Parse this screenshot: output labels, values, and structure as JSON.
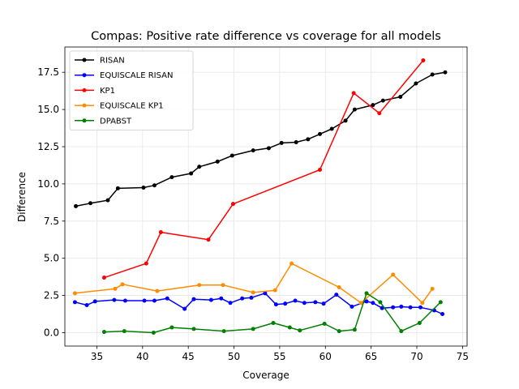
{
  "chart_data": {
    "type": "line",
    "title": "Compas: Positive rate difference vs coverage for all models",
    "xlabel": "Coverage",
    "ylabel": "Difference",
    "xlim": [
      31.5,
      75.5
    ],
    "ylim": [
      -0.9,
      19.2
    ],
    "xticks": [
      35,
      40,
      45,
      50,
      55,
      60,
      65,
      70,
      75
    ],
    "xtick_labels": [
      "35",
      "40",
      "45",
      "50",
      "55",
      "60",
      "65",
      "70",
      "75"
    ],
    "yticks": [
      0.0,
      2.5,
      5.0,
      7.5,
      10.0,
      12.5,
      15.0,
      17.5
    ],
    "ytick_labels": [
      "0.0",
      "2.5",
      "5.0",
      "7.5",
      "10.0",
      "12.5",
      "15.0",
      "17.5"
    ],
    "grid": true,
    "legend_position": "top-left",
    "series": [
      {
        "name": "RISAN",
        "color": "#000000",
        "x": [
          32.7,
          34.3,
          36.2,
          37.3,
          40.1,
          41.3,
          43.2,
          45.3,
          46.2,
          48.2,
          49.8,
          52.1,
          53.8,
          55.2,
          56.8,
          58.1,
          59.4,
          60.7,
          62.2,
          63.2,
          65.2,
          66.3,
          68.2,
          69.9,
          71.7,
          73.1
        ],
        "y": [
          8.5,
          8.7,
          8.9,
          9.7,
          9.75,
          9.9,
          10.45,
          10.7,
          11.15,
          11.5,
          11.9,
          12.25,
          12.4,
          12.75,
          12.8,
          13.0,
          13.35,
          13.7,
          14.25,
          15.0,
          15.3,
          15.6,
          15.85,
          16.75,
          17.35,
          17.5
        ]
      },
      {
        "name": "EQUISCALE RISAN",
        "color": "#0000ff",
        "x": [
          32.6,
          33.9,
          34.8,
          36.9,
          38.1,
          40.2,
          41.3,
          42.7,
          44.6,
          45.6,
          47.5,
          48.6,
          49.6,
          50.9,
          51.9,
          53.4,
          54.6,
          55.6,
          56.7,
          57.7,
          58.9,
          59.8,
          61.2,
          62.9,
          64.5,
          65.2,
          66.2,
          67.4,
          68.3,
          69.3,
          70.4,
          71.9,
          72.8
        ],
        "y": [
          2.05,
          1.85,
          2.1,
          2.2,
          2.15,
          2.15,
          2.15,
          2.3,
          1.6,
          2.25,
          2.2,
          2.3,
          2.0,
          2.3,
          2.35,
          2.65,
          1.9,
          1.95,
          2.15,
          2.0,
          2.05,
          1.95,
          2.55,
          1.75,
          2.1,
          2.0,
          1.65,
          1.7,
          1.75,
          1.7,
          1.7,
          1.5,
          1.25
        ]
      },
      {
        "name": "KP1",
        "color": "#ff0000",
        "x": [
          35.8,
          40.4,
          42.0,
          47.2,
          49.9,
          59.4,
          63.1,
          65.9,
          70.7
        ],
        "y": [
          3.7,
          4.65,
          6.75,
          6.25,
          8.65,
          10.95,
          16.1,
          14.75,
          18.3
        ]
      },
      {
        "name": "EQUISCALE KP1",
        "color": "#ff8c00",
        "x": [
          32.6,
          37.0,
          37.8,
          41.6,
          46.2,
          48.8,
          52.1,
          54.5,
          56.3,
          61.5,
          63.9,
          67.4,
          70.6,
          71.7
        ],
        "y": [
          2.65,
          2.95,
          3.25,
          2.8,
          3.2,
          3.2,
          2.7,
          2.85,
          4.65,
          3.05,
          2.0,
          3.9,
          2.0,
          2.95
        ]
      },
      {
        "name": "DPABST",
        "color": "#008000",
        "x": [
          35.8,
          38.0,
          41.2,
          43.2,
          45.6,
          48.9,
          52.1,
          54.3,
          56.1,
          57.2,
          59.9,
          61.5,
          63.2,
          64.5,
          66.0,
          68.3,
          70.3,
          72.6
        ],
        "y": [
          0.05,
          0.1,
          0.0,
          0.35,
          0.25,
          0.1,
          0.25,
          0.65,
          0.35,
          0.15,
          0.6,
          0.1,
          0.2,
          2.65,
          2.05,
          0.1,
          0.65,
          2.05
        ]
      }
    ]
  }
}
